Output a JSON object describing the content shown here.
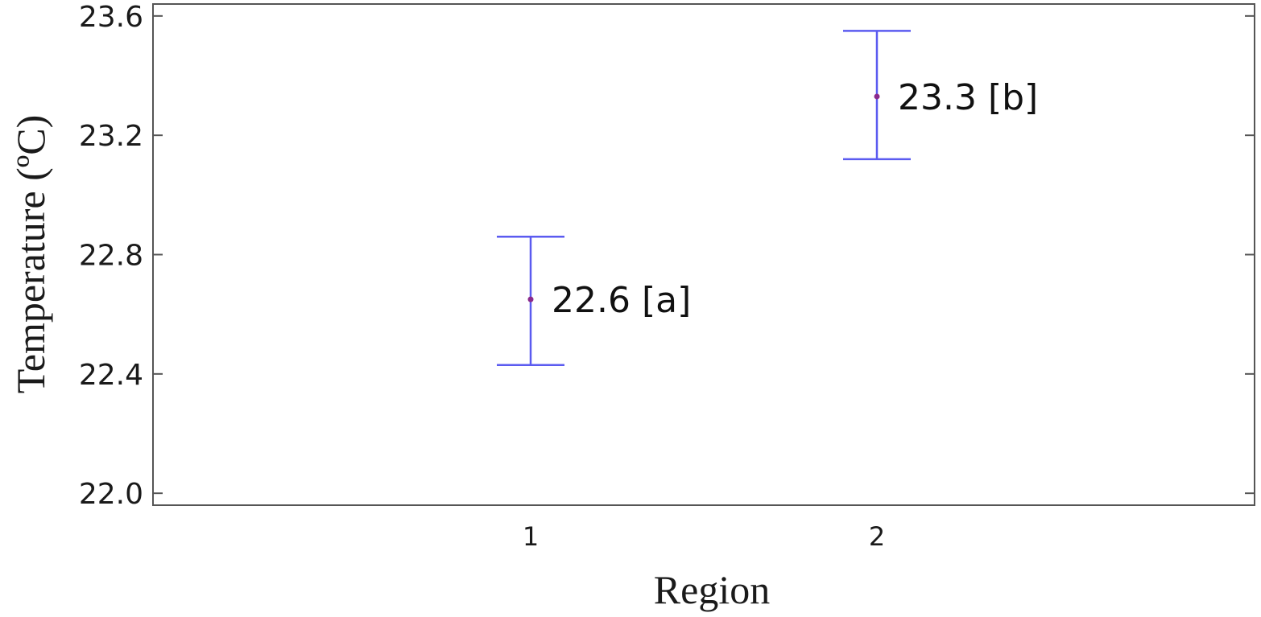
{
  "chart_data": {
    "type": "scatter",
    "title": "",
    "xlabel": "Region",
    "ylabel": "Temperature (ºC)",
    "categories": [
      "1",
      "2"
    ],
    "ylim": [
      21.96,
      23.64
    ],
    "yticks": [
      "22.0",
      "22.4",
      "22.8",
      "23.2",
      "23.6"
    ],
    "ytick_values": [
      22.0,
      22.4,
      22.8,
      23.2,
      23.6
    ],
    "series": [
      {
        "points": [
          {
            "category": "1",
            "mean": 22.65,
            "lower": 22.43,
            "upper": 22.86,
            "label": "22.6 [a]"
          },
          {
            "category": "2",
            "mean": 23.33,
            "lower": 23.12,
            "upper": 23.55,
            "label": "23.3 [b]"
          }
        ]
      }
    ],
    "grid": false,
    "error_bar_color": "#5b5bf0",
    "point_color": "#8b2a8b",
    "axis_color": "#555555"
  }
}
